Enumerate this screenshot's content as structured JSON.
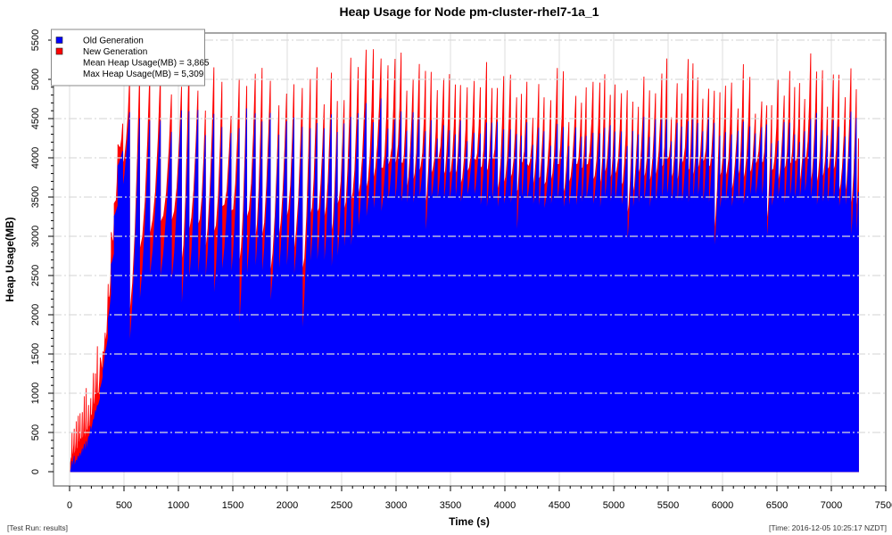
{
  "page_title": "Heap Usage for Node pm-cluster-rhel7-1a_1",
  "footer": {
    "left": "[Test Run: results]",
    "right": "[Time: 2016-12-05 10:25:17 NZDT]"
  },
  "chart_data": {
    "type": "area",
    "stacked": true,
    "title": "Heap Usage for Node pm-cluster-rhel7-1a_1",
    "xlabel": "Time (s)",
    "ylabel": "Heap Usage(MB)",
    "xlim": [
      0,
      7500
    ],
    "ylim": [
      0,
      5500
    ],
    "x_tick_step": 500,
    "y_tick_step": 500,
    "minor_tick_step": 100,
    "grid": {
      "vertical": true,
      "horizontal": true,
      "horizontal_style": "dash-dot",
      "vertical_style": "solid"
    },
    "legend_position": "top-left",
    "colors": {
      "old_generation": "#0000ff",
      "new_generation": "#ff0000",
      "grid": "#dcdcdc",
      "plot_border": "#808080",
      "tick": "#000000",
      "legend_border": "#888888"
    },
    "legend": {
      "entries": [
        {
          "label": "Old Generation",
          "color": "#0000ff"
        },
        {
          "label": "New Generation",
          "color": "#ff0000"
        }
      ],
      "mean_label": "Mean Heap Usage(MB) = 3,865",
      "max_label": "Max Heap Usage(MB) = 5,309"
    },
    "stats": {
      "mean_heap_mb": 3865,
      "max_heap_mb": 5309
    },
    "series": [
      {
        "name": "Old Generation",
        "color": "#0000ff",
        "role": "base-area"
      },
      {
        "name": "New Generation",
        "color": "#ff0000",
        "role": "stacked-on-top"
      }
    ],
    "profile": {
      "description": "GC sawtooth heap usage in MB; each cycle rises from dip to peak (Old Gen) with New Gen wedge after each collection and tip at each peak",
      "t_start": 10,
      "t_end": 7250,
      "envelope": [
        {
          "t": 10,
          "dip": 15,
          "peak": 60,
          "tip": 260,
          "wedge": 120
        },
        {
          "t": 150,
          "dip": 260,
          "peak": 430,
          "tip": 500,
          "wedge": 260
        },
        {
          "t": 260,
          "dip": 850,
          "peak": 1000,
          "tip": 500,
          "wedge": 300
        },
        {
          "t": 340,
          "dip": 1650,
          "peak": 1900,
          "tip": 480,
          "wedge": 320
        },
        {
          "t": 400,
          "dip": 2950,
          "peak": 3250,
          "tip": 430,
          "wedge": 300
        },
        {
          "t": 460,
          "dip": 4150,
          "peak": 4420,
          "tip": 240,
          "wedge": 220
        },
        {
          "t": 560,
          "dip": 2380,
          "peak": 4480,
          "tip": 330,
          "wedge": 700
        },
        {
          "t": 1000,
          "dip": 2420,
          "peak": 4430,
          "tip": 380,
          "wedge": 680
        },
        {
          "t": 2000,
          "dip": 2470,
          "peak": 4480,
          "tip": 400,
          "wedge": 650
        },
        {
          "t": 2450,
          "dip": 2550,
          "peak": 4520,
          "tip": 450,
          "wedge": 600
        },
        {
          "t": 2700,
          "dip": 3050,
          "peak": 4680,
          "tip": 560,
          "wedge": 520
        },
        {
          "t": 2950,
          "dip": 3400,
          "peak": 4400,
          "tip": 460,
          "wedge": 430
        },
        {
          "t": 4500,
          "dip": 3350,
          "peak": 4330,
          "tip": 470,
          "wedge": 440
        },
        {
          "t": 6500,
          "dip": 3380,
          "peak": 4360,
          "tip": 480,
          "wedge": 420
        },
        {
          "t": 7120,
          "dip": 3420,
          "peak": 4450,
          "tip": 560,
          "wedge": 400
        },
        {
          "t": 7200,
          "dip": 2870,
          "peak": 4400,
          "tip": 600,
          "wedge": 480
        },
        {
          "t": 7250,
          "dip": 2870,
          "peak": 2900,
          "tip": 480,
          "wedge": 480
        }
      ],
      "cycle_period_s": [
        {
          "t": 10,
          "p": 16
        },
        {
          "t": 400,
          "p": 26
        },
        {
          "t": 560,
          "p": 90
        },
        {
          "t": 2450,
          "p": 68
        },
        {
          "t": 2950,
          "p": 56
        },
        {
          "t": 7250,
          "p": 50
        }
      ],
      "deep_dips": [
        {
          "t": 560,
          "old": 1560
        },
        {
          "t": 700,
          "old": 2120
        },
        {
          "t": 1050,
          "old": 1980
        },
        {
          "t": 1310,
          "old": 2180
        },
        {
          "t": 1560,
          "old": 1700
        },
        {
          "t": 1840,
          "old": 2060
        },
        {
          "t": 2120,
          "old": 1680
        },
        {
          "t": 3300,
          "old": 2980
        },
        {
          "t": 4100,
          "old": 2950
        },
        {
          "t": 5150,
          "old": 2820
        },
        {
          "t": 5950,
          "old": 2780
        },
        {
          "t": 6420,
          "old": 2900
        },
        {
          "t": 7210,
          "old": 2870
        }
      ],
      "notable_spikes": [
        {
          "t": 2690,
          "total": 5309
        },
        {
          "t": 3240,
          "total": 5050
        },
        {
          "t": 7130,
          "total": 5100
        }
      ]
    }
  }
}
